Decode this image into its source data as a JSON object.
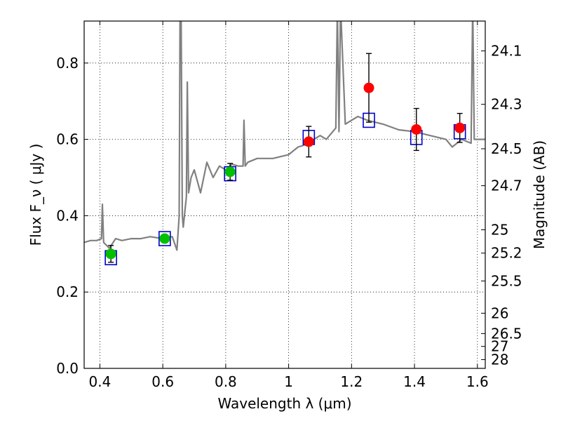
{
  "chart_data": {
    "type": "scatter",
    "title": "",
    "xlabel": "Wavelength  λ (μm)",
    "ylabel": "Flux  F_ν  ( μJy )",
    "y2label": "Magnitude (AB)",
    "xlim": [
      0.35,
      1.625
    ],
    "ylim": [
      0.0,
      0.91
    ],
    "x_ticks": [
      0.4,
      0.6,
      0.8,
      1.0,
      1.2,
      1.4,
      1.6
    ],
    "x_tick_labels": [
      "0.4",
      "0.6",
      "0.8",
      "1",
      "1.2",
      "1.4",
      "1.6"
    ],
    "y_ticks": [
      0.0,
      0.2,
      0.4,
      0.6,
      0.8
    ],
    "y_tick_labels": [
      "0.0",
      "0.2",
      "0.4",
      "0.6",
      "0.8"
    ],
    "y2_ticks": [
      {
        "label": "24.1",
        "mag": 24.1
      },
      {
        "label": "24.3",
        "mag": 24.3
      },
      {
        "label": "24.5",
        "mag": 24.5
      },
      {
        "label": "24.7",
        "mag": 24.7
      },
      {
        "label": "25",
        "mag": 25.0
      },
      {
        "label": "25.2",
        "mag": 25.2
      },
      {
        "label": "25.5",
        "mag": 25.5
      },
      {
        "label": "26",
        "mag": 26.0
      },
      {
        "label": "26.5",
        "mag": 26.5
      },
      {
        "label": "27",
        "mag": 27.0
      },
      {
        "label": "28",
        "mag": 28.0
      }
    ],
    "grid": true,
    "colors": {
      "spectrum": "#808080",
      "model_box": "#0000cc",
      "optical_point": "#00c000",
      "nir_point": "#ff0000",
      "errorbar": "#000000"
    },
    "series": [
      {
        "kind": "spectrum",
        "x": [
          0.35,
          0.37,
          0.39,
          0.405,
          0.408,
          0.412,
          0.43,
          0.45,
          0.47,
          0.5,
          0.53,
          0.56,
          0.6,
          0.63,
          0.645,
          0.652,
          0.655,
          0.658,
          0.662,
          0.665,
          0.675,
          0.678,
          0.682,
          0.69,
          0.7,
          0.72,
          0.74,
          0.76,
          0.78,
          0.8,
          0.82,
          0.84,
          0.855,
          0.858,
          0.862,
          0.87,
          0.9,
          0.95,
          1.0,
          1.03,
          1.05,
          1.08,
          1.1,
          1.12,
          1.15,
          1.155,
          1.16,
          1.165,
          1.18,
          1.2,
          1.22,
          1.25,
          1.3,
          1.35,
          1.4,
          1.45,
          1.5,
          1.52,
          1.55,
          1.58,
          1.585,
          1.59,
          1.6,
          1.625
        ],
        "y": [
          0.33,
          0.335,
          0.335,
          0.34,
          0.43,
          0.33,
          0.315,
          0.34,
          0.335,
          0.34,
          0.34,
          0.345,
          0.34,
          0.345,
          0.31,
          0.4,
          0.95,
          0.95,
          0.4,
          0.37,
          0.45,
          0.75,
          0.46,
          0.5,
          0.52,
          0.46,
          0.54,
          0.5,
          0.53,
          0.52,
          0.535,
          0.53,
          0.53,
          0.65,
          0.53,
          0.54,
          0.55,
          0.55,
          0.56,
          0.58,
          0.585,
          0.6,
          0.61,
          0.6,
          0.63,
          0.95,
          0.62,
          0.95,
          0.64,
          0.65,
          0.66,
          0.65,
          0.64,
          0.625,
          0.62,
          0.61,
          0.6,
          0.58,
          0.6,
          0.59,
          0.95,
          0.6,
          0.6,
          0.6
        ]
      },
      {
        "kind": "model_photometry",
        "x": [
          0.435,
          0.606,
          0.814,
          1.064,
          1.255,
          1.406,
          1.544
        ],
        "y": [
          0.29,
          0.34,
          0.51,
          0.605,
          0.65,
          0.605,
          0.62
        ]
      },
      {
        "kind": "observed_optical",
        "x": [
          0.435,
          0.606,
          0.814
        ],
        "y": [
          0.3,
          0.34,
          0.515
        ],
        "yerr": [
          0.022,
          0.01,
          0.022
        ]
      },
      {
        "kind": "observed_nir",
        "x": [
          1.064,
          1.255,
          1.406,
          1.544
        ],
        "y": [
          0.594,
          0.735,
          0.626,
          0.63
        ],
        "yerr": [
          0.04,
          0.09,
          0.055,
          0.038
        ]
      }
    ]
  }
}
